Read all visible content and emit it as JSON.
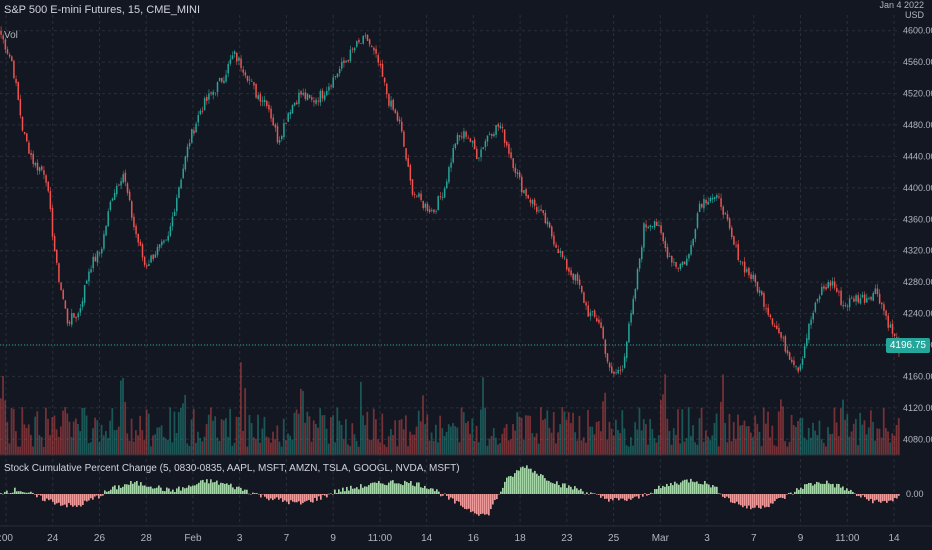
{
  "header": {
    "symbol_title": "S&P 500 E-mini Futures, 15, CME_MINI",
    "volume_label": "Vol",
    "indicator_label": "Stock Cumulative Percent Change (5, 0830-0835, AAPL, MSFT, AMZN, TSLA, GOOGL, NVDA, MSFT)",
    "currency_line1": "Jan 4 2022",
    "currency_line2": "USD",
    "last_price": "4196.75"
  },
  "colors": {
    "background": "#131722",
    "grid": "#2a2e39",
    "up": "#26a69a",
    "down": "#ef5350",
    "indicator_up": "#a5d6a7",
    "indicator_down": "#ef9a9a",
    "badge": "#26a69a"
  },
  "chart_data": [
    {
      "type": "line",
      "series": [
        {
          "name": "S&P 500 E-mini Futures",
          "values": [
            4595,
            4560,
            4470,
            4430,
            4420,
            4300,
            4230,
            4240,
            4300,
            4320,
            4390,
            4420,
            4350,
            4300,
            4320,
            4330,
            4400,
            4460,
            4500,
            4520,
            4540,
            4570,
            4550,
            4520,
            4510,
            4460,
            4500,
            4520,
            4510,
            4520,
            4540,
            4560,
            4580,
            4590,
            4560,
            4510,
            4480,
            4400,
            4380,
            4370,
            4400,
            4460,
            4470,
            4440,
            4470,
            4480,
            4440,
            4400,
            4380,
            4360,
            4330,
            4300,
            4280,
            4240,
            4230,
            4160,
            4170,
            4250,
            4350,
            4360,
            4320,
            4300,
            4310,
            4380,
            4390,
            4380,
            4330,
            4300,
            4280,
            4250,
            4220,
            4190,
            4170,
            4230,
            4270,
            4280,
            4250,
            4260,
            4260,
            4270,
            4230,
            4195
          ]
        }
      ],
      "ylim": [
        4060,
        4620
      ],
      "y_ticks": [
        "4600.00",
        "4560.00",
        "4520.00",
        "4480.00",
        "4440.00",
        "4400.00",
        "4360.00",
        "4320.00",
        "4280.00",
        "4240.00",
        "4200.00",
        "4160.00",
        "4120.00",
        "4080.00"
      ],
      "x_ticks": [
        ":00",
        "24",
        "26",
        "28",
        "Feb",
        "3",
        "7",
        "9",
        "11:00",
        "14",
        "16",
        "18",
        "23",
        "25",
        "Mar",
        "3",
        "7",
        "9",
        "11:00",
        "14"
      ],
      "grid": true
    },
    {
      "type": "bar",
      "series": [
        {
          "name": "Vol",
          "values": []
        }
      ]
    },
    {
      "type": "bar",
      "series": [
        {
          "name": "Stock Cumulative Percent Change",
          "values": [
            0.2,
            0.4,
            -0.3,
            -0.8,
            -1.2,
            -0.4,
            0.5,
            1.0,
            0.8,
            0.3,
            0.6,
            1.2,
            0.9,
            0.4,
            -0.2,
            -0.6,
            -0.9,
            -0.4,
            0.3,
            0.6,
            0.9,
            1.1,
            1.0,
            0.6,
            -0.5,
            -1.4,
            -2.0,
            1.2,
            2.6,
            1.6,
            0.8,
            0.4,
            -0.3,
            -0.6,
            -0.4,
            0.4,
            1.0,
            1.3,
            0.8,
            -0.6,
            -1.3,
            -1.0,
            -0.2,
            0.8,
            1.1,
            0.6,
            -0.3,
            -0.8,
            -0.4
          ]
        }
      ],
      "y_ticks": [
        "0.00"
      ]
    }
  ]
}
